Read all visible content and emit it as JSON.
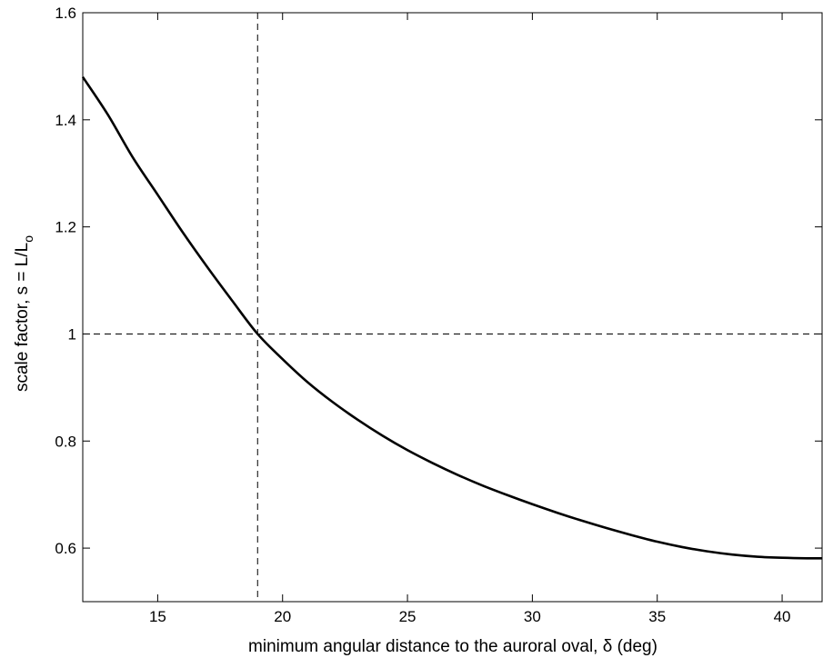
{
  "chart_data": {
    "type": "line",
    "title": "",
    "xlabel": "minimum angular distance to the auroral oval, δ (deg)",
    "ylabel_main": "scale factor, s = L/L",
    "ylabel_subscript": "o",
    "xlim": [
      12,
      41.6
    ],
    "ylim": [
      0.5,
      1.6
    ],
    "xticks": [
      15,
      20,
      25,
      30,
      35,
      40
    ],
    "yticks": [
      0.6,
      0.8,
      1,
      1.2,
      1.4,
      1.6
    ],
    "xtick_labels": [
      "15",
      "20",
      "25",
      "30",
      "35",
      "40"
    ],
    "ytick_labels": [
      "0.6",
      "0.8",
      "1",
      "1.2",
      "1.4",
      "1.6"
    ],
    "grid": false,
    "series": [
      {
        "x": [
          12,
          13,
          14,
          15,
          16,
          17,
          18,
          19,
          20,
          21,
          22,
          23,
          24,
          25,
          26,
          27,
          28,
          29,
          30,
          31,
          32,
          33,
          34,
          35,
          36,
          37,
          38,
          39,
          40,
          41,
          41.6
        ],
        "y": [
          1.48,
          1.41,
          1.33,
          1.26,
          1.19,
          1.124,
          1.061,
          1.0,
          0.953,
          0.91,
          0.873,
          0.84,
          0.81,
          0.783,
          0.759,
          0.737,
          0.717,
          0.699,
          0.682,
          0.666,
          0.651,
          0.637,
          0.624,
          0.612,
          0.602,
          0.594,
          0.588,
          0.584,
          0.582,
          0.581,
          0.581
        ],
        "color": "#000000",
        "style": "solid"
      }
    ],
    "reference_lines": [
      {
        "orientation": "vertical",
        "value": 19,
        "style": "dashed",
        "color": "#000000"
      },
      {
        "orientation": "horizontal",
        "value": 1,
        "style": "dashed",
        "color": "#000000"
      }
    ]
  }
}
